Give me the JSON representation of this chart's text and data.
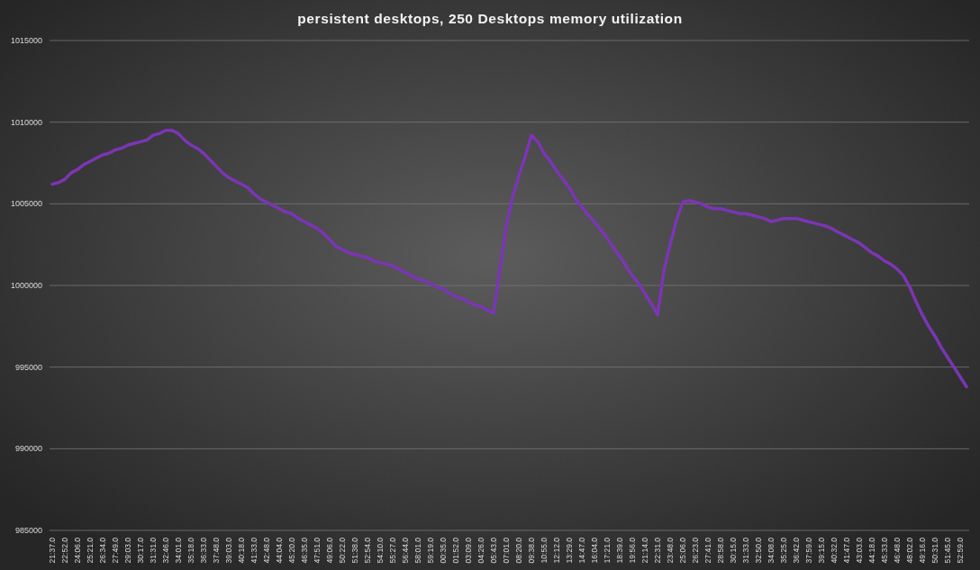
{
  "chart_data": {
    "type": "line",
    "title": "persistent desktops, 250 Desktops memory utilization",
    "categories": [
      "21:37.0",
      null,
      "22:52.0",
      null,
      "24:06.0",
      null,
      "25:21.0",
      null,
      "26:34.0",
      null,
      "27:49.0",
      null,
      "29:03.0",
      null,
      "30:17.0",
      null,
      "31:31.0",
      null,
      "32:46.0",
      null,
      "34:01.0",
      null,
      "35:18.0",
      null,
      "36:33.0",
      null,
      "37:48.0",
      null,
      "39:03.0",
      null,
      "40:18.0",
      null,
      "41:33.0",
      null,
      "42:48.0",
      null,
      "44:04.0",
      null,
      "45:20.0",
      null,
      "46:35.0",
      null,
      "47:51.0",
      null,
      "49:06.0",
      null,
      "50:22.0",
      null,
      "51:38.0",
      null,
      "52:54.0",
      null,
      "54:10.0",
      null,
      "55:27.0",
      null,
      "56:44.0",
      null,
      "58:01.0",
      null,
      "59:19.0",
      null,
      "00:35.0",
      null,
      "01:52.0",
      null,
      "03:09.0",
      null,
      "04:26.0",
      null,
      "05:43.0",
      null,
      "07:01.0",
      null,
      "08:20.0",
      null,
      "09:38.0",
      null,
      "10:55.0",
      null,
      "12:12.0",
      null,
      "13:29.0",
      null,
      "14:47.0",
      null,
      "16:04.0",
      null,
      "17:21.0",
      null,
      "18:39.0",
      null,
      "19:56.0",
      null,
      "21:14.0",
      null,
      "22:31.0",
      null,
      "23:48.0",
      null,
      "25:06.0",
      null,
      "26:23.0",
      null,
      "27:41.0",
      null,
      "28:58.0",
      null,
      "30:15.0",
      null,
      "31:33.0",
      null,
      "32:50.0",
      null,
      "34:08.0",
      null,
      "35:25.0",
      null,
      "36:42.0",
      null,
      "37:59.0",
      null,
      "39:15.0",
      null,
      "40:32.0",
      null,
      "41:47.0",
      null,
      "43:03.0",
      null,
      "44:18.0",
      null,
      "45:33.0",
      null,
      "46:48.0",
      null,
      "48:02.0",
      null,
      "49:16.0",
      null,
      "50:31.0",
      null,
      "51:45.0",
      null,
      "52:59.0",
      null
    ],
    "values": [
      1006200,
      1006300,
      1006500,
      1006900,
      1007100,
      1007400,
      1007600,
      1007800,
      1008000,
      1008100,
      1008300,
      1008400,
      1008600,
      1008700,
      1008800,
      1008900,
      1009200,
      1009300,
      1009500,
      1009500,
      1009300,
      1008900,
      1008600,
      1008400,
      1008100,
      1007700,
      1007300,
      1006900,
      1006600,
      1006400,
      1006200,
      1006000,
      1005600,
      1005300,
      1005100,
      1004900,
      1004700,
      1004500,
      1004400,
      1004100,
      1003900,
      1003700,
      1003500,
      1003200,
      1002800,
      1002400,
      1002200,
      1002000,
      1001900,
      1001800,
      1001700,
      1001500,
      1001400,
      1001300,
      1001200,
      1001000,
      1000800,
      1000600,
      1000400,
      1000300,
      1000100,
      999900,
      999800,
      999500,
      999300,
      999200,
      999000,
      998800,
      998700,
      998500,
      998300,
      1001000,
      1003600,
      1005400,
      1006700,
      1007900,
      1009200,
      1008800,
      1008100,
      1007600,
      1007000,
      1006500,
      1006000,
      1005300,
      1004800,
      1004300,
      1003900,
      1003400,
      1002900,
      1002300,
      1001800,
      1001200,
      1000600,
      1000100,
      999500,
      998900,
      998200,
      1000900,
      1002500,
      1004000,
      1005100,
      1005200,
      1005100,
      1005000,
      1004800,
      1004700,
      1004700,
      1004600,
      1004500,
      1004400,
      1004400,
      1004300,
      1004200,
      1004100,
      1003900,
      1004000,
      1004100,
      1004100,
      1004100,
      1004000,
      1003900,
      1003800,
      1003700,
      1003600,
      1003400,
      1003200,
      1003000,
      1002800,
      1002600,
      1002300,
      1002000,
      1001800,
      1001500,
      1001300,
      1001000,
      1000600,
      999900,
      999000,
      998200,
      997500,
      996900,
      996200,
      995600,
      995000,
      994400,
      993800
    ],
    "color": "#7b35b5",
    "ylim": [
      985000,
      1015000
    ],
    "yticks": [
      985000,
      990000,
      995000,
      1000000,
      1005000,
      1010000,
      1015000
    ],
    "grid": "y"
  }
}
